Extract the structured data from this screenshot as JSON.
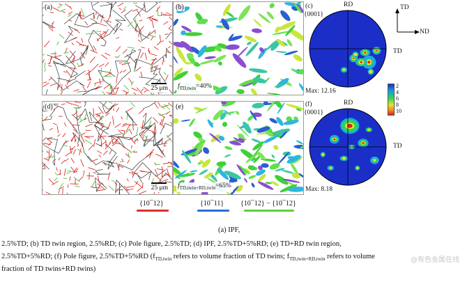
{
  "panels": {
    "a": {
      "label": "(a)",
      "scale": "25 μm"
    },
    "b": {
      "label": "(b)",
      "frac_sym": "f",
      "frac_sub": "TD,twin",
      "frac_val": "=40%"
    },
    "c": {
      "label": "(c)",
      "plane": "{0001}",
      "rd": "RD",
      "td": "TD",
      "max": "Max: 12.16"
    },
    "d": {
      "label": "(d)",
      "scale": "25 μm"
    },
    "e": {
      "label": "(e)",
      "frac_sym": "f",
      "frac_sub": "TD,twin+RD,twin",
      "frac_val": "=65%"
    },
    "f": {
      "label": "(f)",
      "plane": "{0001}",
      "rd": "RD",
      "td": "TD",
      "max": "Max: 8.18"
    }
  },
  "axes": {
    "td": "TD",
    "nd": "ND"
  },
  "colorbar": {
    "ticks": [
      "2",
      "4",
      "6",
      "8",
      "10"
    ]
  },
  "legend": [
    {
      "label": "{10¯12}",
      "color": "#d9302a"
    },
    {
      "label": "{10¯11}",
      "color": "#2a6fd1"
    },
    {
      "label": "{10¯12} − {10¯12}",
      "color": "#5cd13a"
    }
  ],
  "caption": {
    "sub": "(a) IPF,",
    "line1": "2.5%TD; (b) TD twin region, 2.5%RD; (c) Pole figure, 2.5%TD; (d) IPF, 2.5%TD+5%RD; (e) TD+RD twin region,",
    "line2": "2.5%TD+5%RD; (f) Pole figure, 2.5%TD+5%RD (f",
    "line2_sub1": "TD,twin",
    "line2_mid": " refers to volume fraction of TD twins; f",
    "line2_sub2": "TD,twin+RD,twin",
    "line2_end": " refers to volume",
    "line3": "fraction of TD twins+RD twins)"
  },
  "watermark": "@有色金属在线",
  "colors": {
    "red_twin": "#d9302a",
    "blue_twin": "#2a6fd1",
    "green_twin": "#5cd13a",
    "pf_bg": "#1b2fc8"
  }
}
